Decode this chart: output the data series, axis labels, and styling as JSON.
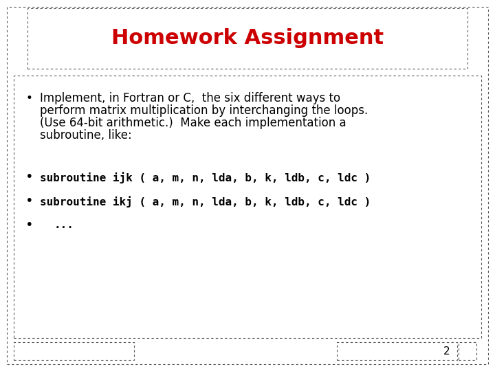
{
  "title": "Homework Assignment",
  "title_color": "#cc0000",
  "title_fontsize": 22,
  "title_fontweight": "bold",
  "background_color": "#ffffff",
  "slide_border_color": "#555555",
  "bullet1_text": [
    "Implement, in Fortran or C,  the six different ways to",
    "perform matrix multiplication by interchanging the loops.",
    "(Use 64-bit arithmetic.)  Make each implementation a",
    "subroutine, like:"
  ],
  "bullet2": "subroutine ijk ( a, m, n, lda, b, k, ldb, c, ldc )",
  "bullet3": "subroutine ikj ( a, m, n, lda, b, k, ldb, c, ldc )",
  "bullet4": "     ...",
  "code_fontsize": 11.5,
  "body_fontsize": 12,
  "page_number": "2"
}
